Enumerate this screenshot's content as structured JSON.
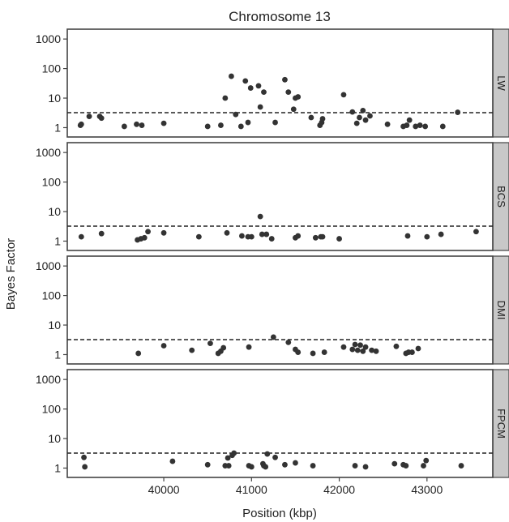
{
  "chart_data": {
    "type": "scatter",
    "title": "Chromosome 13",
    "xlabel": "Position (kbp)",
    "ylabel": "Bayes Factor",
    "ylog": true,
    "ylim": [
      0.8,
      1300
    ],
    "xlim": [
      38900,
      43750
    ],
    "yticks": [
      1,
      10,
      100,
      1000
    ],
    "xticks": [
      40000,
      41000,
      42000,
      43000
    ],
    "threshold": 3.2,
    "panels": [
      {
        "name": "LW",
        "points": [
          [
            39050,
            1.2
          ],
          [
            39060,
            1.3
          ],
          [
            39150,
            2.4
          ],
          [
            39270,
            2.4
          ],
          [
            39290,
            2.1
          ],
          [
            39550,
            1.1
          ],
          [
            39690,
            1.3
          ],
          [
            39750,
            1.2
          ],
          [
            40000,
            1.4
          ],
          [
            40500,
            1.1
          ],
          [
            40650,
            1.2
          ],
          [
            40700,
            10
          ],
          [
            40770,
            55
          ],
          [
            40820,
            2.8
          ],
          [
            40880,
            1.1
          ],
          [
            40930,
            38
          ],
          [
            40960,
            1.5
          ],
          [
            40990,
            22
          ],
          [
            41080,
            26
          ],
          [
            41100,
            5
          ],
          [
            41140,
            16
          ],
          [
            41270,
            1.5
          ],
          [
            41380,
            42
          ],
          [
            41420,
            16
          ],
          [
            41480,
            4.2
          ],
          [
            41500,
            10
          ],
          [
            41530,
            11
          ],
          [
            41680,
            2.2
          ],
          [
            41780,
            1.2
          ],
          [
            41800,
            1.5
          ],
          [
            41810,
            2
          ],
          [
            42050,
            13
          ],
          [
            42150,
            3.4
          ],
          [
            42200,
            1.4
          ],
          [
            42230,
            2.2
          ],
          [
            42270,
            3.8
          ],
          [
            42300,
            1.8
          ],
          [
            42350,
            2.5
          ],
          [
            42550,
            1.3
          ],
          [
            42730,
            1.1
          ],
          [
            42770,
            1.2
          ],
          [
            42800,
            1.8
          ],
          [
            42870,
            1.1
          ],
          [
            42920,
            1.2
          ],
          [
            42980,
            1.1
          ],
          [
            43180,
            1.1
          ],
          [
            43350,
            3.3
          ]
        ]
      },
      {
        "name": "BCS",
        "points": [
          [
            39060,
            1.4
          ],
          [
            39290,
            1.8
          ],
          [
            39700,
            1.1
          ],
          [
            39740,
            1.2
          ],
          [
            39780,
            1.3
          ],
          [
            39820,
            2.1
          ],
          [
            40000,
            1.9
          ],
          [
            40400,
            1.4
          ],
          [
            40720,
            1.9
          ],
          [
            40890,
            1.5
          ],
          [
            40960,
            1.4
          ],
          [
            41000,
            1.4
          ],
          [
            41100,
            6.8
          ],
          [
            41120,
            1.7
          ],
          [
            41170,
            1.7
          ],
          [
            41230,
            1.2
          ],
          [
            41500,
            1.3
          ],
          [
            41530,
            1.5
          ],
          [
            41730,
            1.3
          ],
          [
            41790,
            1.4
          ],
          [
            41810,
            1.4
          ],
          [
            42000,
            1.2
          ],
          [
            42780,
            1.5
          ],
          [
            43000,
            1.4
          ],
          [
            43160,
            1.7
          ],
          [
            43560,
            2.1
          ]
        ]
      },
      {
        "name": "DMI",
        "points": [
          [
            39710,
            1.1
          ],
          [
            40000,
            2
          ],
          [
            40320,
            1.4
          ],
          [
            40530,
            2.4
          ],
          [
            40620,
            1.1
          ],
          [
            40650,
            1.3
          ],
          [
            40680,
            1.7
          ],
          [
            40970,
            1.8
          ],
          [
            41250,
            3.9
          ],
          [
            41420,
            2.6
          ],
          [
            41500,
            1.5
          ],
          [
            41530,
            1.2
          ],
          [
            41700,
            1.1
          ],
          [
            41830,
            1.2
          ],
          [
            42050,
            1.8
          ],
          [
            42150,
            1.5
          ],
          [
            42180,
            2.2
          ],
          [
            42210,
            1.4
          ],
          [
            42240,
            2.1
          ],
          [
            42270,
            1.3
          ],
          [
            42300,
            1.8
          ],
          [
            42370,
            1.4
          ],
          [
            42420,
            1.3
          ],
          [
            42650,
            1.9
          ],
          [
            42760,
            1.1
          ],
          [
            42790,
            1.2
          ],
          [
            42830,
            1.2
          ],
          [
            42900,
            1.6
          ]
        ]
      },
      {
        "name": "FPCM",
        "points": [
          [
            39090,
            2.3
          ],
          [
            39100,
            1.1
          ],
          [
            40100,
            1.7
          ],
          [
            40500,
            1.3
          ],
          [
            40700,
            1.2
          ],
          [
            40730,
            2.2
          ],
          [
            40740,
            1.2
          ],
          [
            40780,
            2.7
          ],
          [
            40800,
            3.2
          ],
          [
            40970,
            1.2
          ],
          [
            41000,
            1.1
          ],
          [
            41130,
            1.4
          ],
          [
            41140,
            1.2
          ],
          [
            41160,
            1.1
          ],
          [
            41180,
            3
          ],
          [
            41270,
            2.3
          ],
          [
            41380,
            1.3
          ],
          [
            41500,
            1.5
          ],
          [
            41700,
            1.2
          ],
          [
            42180,
            1.2
          ],
          [
            42300,
            1.1
          ],
          [
            42630,
            1.4
          ],
          [
            42730,
            1.3
          ],
          [
            42760,
            1.2
          ],
          [
            42960,
            1.2
          ],
          [
            42990,
            1.8
          ],
          [
            43390,
            1.2
          ]
        ]
      }
    ]
  }
}
